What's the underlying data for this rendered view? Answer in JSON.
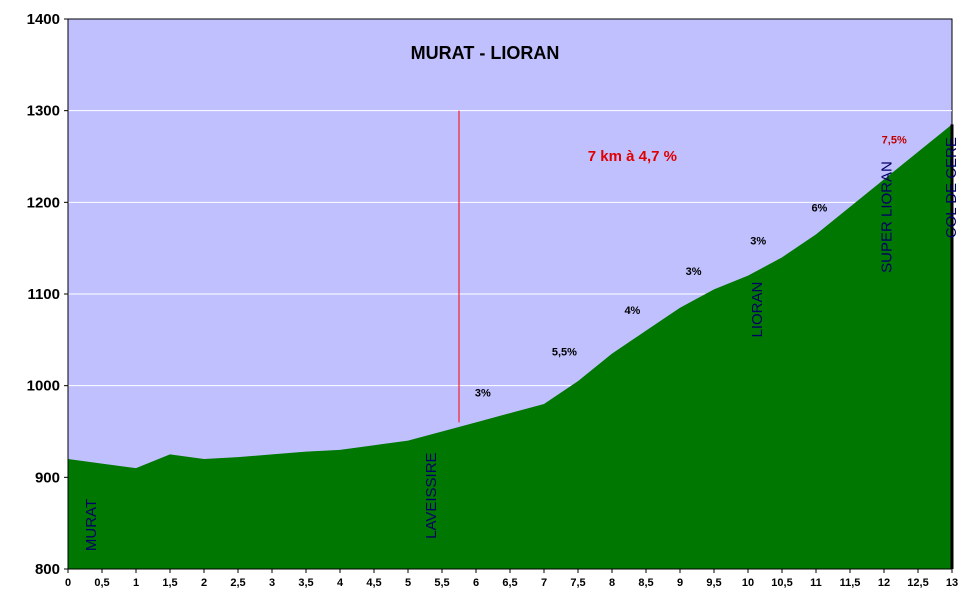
{
  "chart_data": {
    "type": "area",
    "title": "MURAT -  LIORAN",
    "xlabel": "",
    "ylabel": "",
    "x_ticks": [
      "0",
      "0,5",
      "1",
      "1,5",
      "2",
      "2,5",
      "3",
      "3,5",
      "4",
      "4,5",
      "5",
      "5,5",
      "6",
      "6,5",
      "7",
      "7,5",
      "8",
      "8,5",
      "9",
      "9,5",
      "10",
      "10,5",
      "11",
      "11,5",
      "12",
      "12,5",
      "13"
    ],
    "y_ticks": [
      "800",
      "900",
      "1000",
      "1100",
      "1200",
      "1300",
      "1400"
    ],
    "xlim": [
      0,
      13
    ],
    "ylim": [
      800,
      1400
    ],
    "grid": "horizontal",
    "colors": {
      "plot_bg": "#c0c0ff",
      "fill": "#007700",
      "marker_line": "#ff0000",
      "place_text": "#000066"
    },
    "series": [
      {
        "x": [
          0,
          0.5,
          1,
          1.5,
          2,
          2.5,
          3,
          3.5,
          4,
          4.5,
          5,
          5.5,
          6,
          6.5,
          7,
          7.5,
          8,
          8.5,
          9,
          9.5,
          10,
          10.5,
          11,
          11.5,
          12,
          12.5,
          13
        ],
        "values": [
          920,
          915,
          910,
          925,
          920,
          922,
          925,
          928,
          930,
          935,
          940,
          950,
          960,
          970,
          980,
          1005,
          1035,
          1060,
          1085,
          1105,
          1120,
          1140,
          1165,
          1195,
          1225,
          1255,
          1285
        ]
      }
    ],
    "marker_line": {
      "x": 5.75,
      "y_from": 960,
      "y_to": 1300
    },
    "annotations": [
      {
        "text": "7 km à 4,7  %",
        "x": 8.3,
        "y": 1245,
        "style": "red"
      },
      {
        "text": "3%",
        "x": 6.1,
        "y": 988,
        "style": "black"
      },
      {
        "text": "5,5%",
        "x": 7.3,
        "y": 1033,
        "style": "black"
      },
      {
        "text": "4%",
        "x": 8.3,
        "y": 1078,
        "style": "black"
      },
      {
        "text": "3%",
        "x": 9.2,
        "y": 1121,
        "style": "black"
      },
      {
        "text": "3%",
        "x": 10.15,
        "y": 1154,
        "style": "black"
      },
      {
        "text": "6%",
        "x": 11.05,
        "y": 1190,
        "style": "black"
      },
      {
        "text": "7,5%",
        "x": 12.15,
        "y": 1264,
        "style": "red-small"
      }
    ],
    "places": [
      {
        "text": "MURAT",
        "x": 0.35,
        "y": 848
      },
      {
        "text": "LAVEISSIRE",
        "x": 5.35,
        "y": 880
      },
      {
        "text": "LIORAN",
        "x": 10.15,
        "y": 1083
      },
      {
        "text": "SUPER LIORAN",
        "x": 12.05,
        "y": 1184
      },
      {
        "text": "COL DE CERE",
        "x": 13.0,
        "y": 1216
      }
    ]
  }
}
